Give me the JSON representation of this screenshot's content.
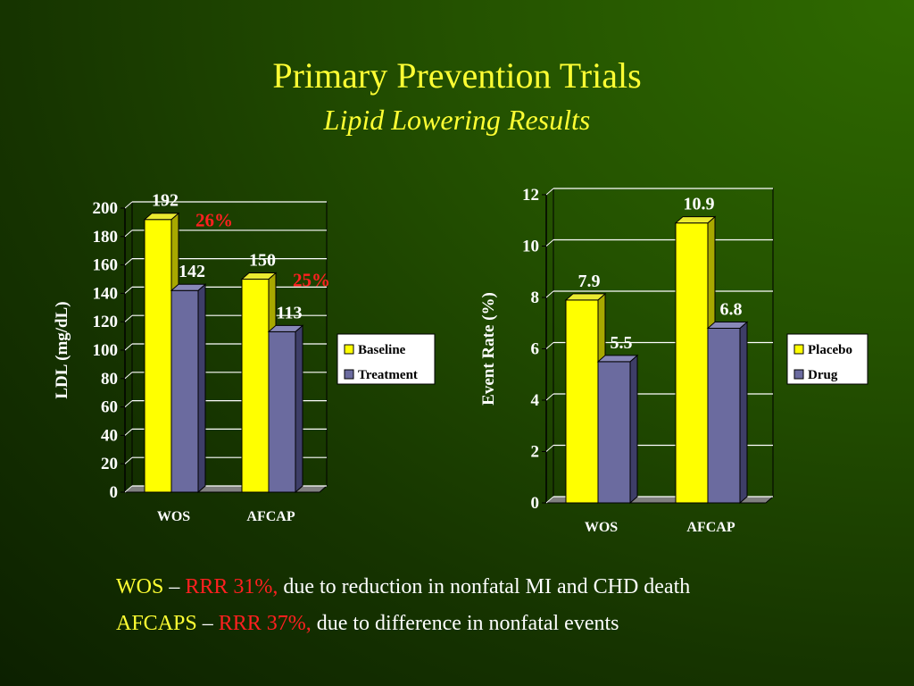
{
  "slide": {
    "title": "Primary Prevention Trials",
    "subtitle": "Lipid Lowering Results"
  },
  "colors": {
    "background": "#1f4a00",
    "title": "#ffff33",
    "annotation_red": "#ff2020",
    "series_yellow": "#ffff00",
    "series_purple": "#6b6b9f"
  },
  "chart_data": [
    {
      "type": "bar",
      "categories": [
        "WOS",
        "AFCAP"
      ],
      "series": [
        {
          "name": "Baseline",
          "values": [
            192,
            150
          ]
        },
        {
          "name": "Treatment",
          "values": [
            142,
            113
          ]
        }
      ],
      "data_labels": [
        "192",
        "142",
        "150",
        "113"
      ],
      "annotations": [
        "26%",
        "25%"
      ],
      "ylabel": "LDL  (mg/dL)",
      "ylim": [
        0,
        200
      ],
      "yticks": [
        "0",
        "20",
        "40",
        "60",
        "80",
        "100",
        "120",
        "140",
        "160",
        "180",
        "200"
      ],
      "grid": true,
      "legend_position": "right"
    },
    {
      "type": "bar",
      "categories": [
        "WOS",
        "AFCAP"
      ],
      "series": [
        {
          "name": "Placebo",
          "values": [
            7.9,
            10.9
          ]
        },
        {
          "name": "Drug",
          "values": [
            5.5,
            6.8
          ]
        }
      ],
      "data_labels": [
        "7.9",
        "5.5",
        "10.9",
        "6.8"
      ],
      "annotations": [],
      "ylabel": "Event Rate (%)",
      "ylim": [
        0,
        12
      ],
      "yticks": [
        "0",
        "2",
        "4",
        "6",
        "8",
        "10",
        "12"
      ],
      "grid": true,
      "legend_position": "right"
    }
  ],
  "footer": {
    "line1": {
      "name": "WOS",
      "dash": " – ",
      "rrr": "RRR 31%,",
      "text": " due to reduction in nonfatal MI and CHD death"
    },
    "line2": {
      "name": "AFCAPS",
      "dash": " – ",
      "rrr": "RRR 37%,",
      "text": " due to difference in nonfatal events"
    }
  }
}
